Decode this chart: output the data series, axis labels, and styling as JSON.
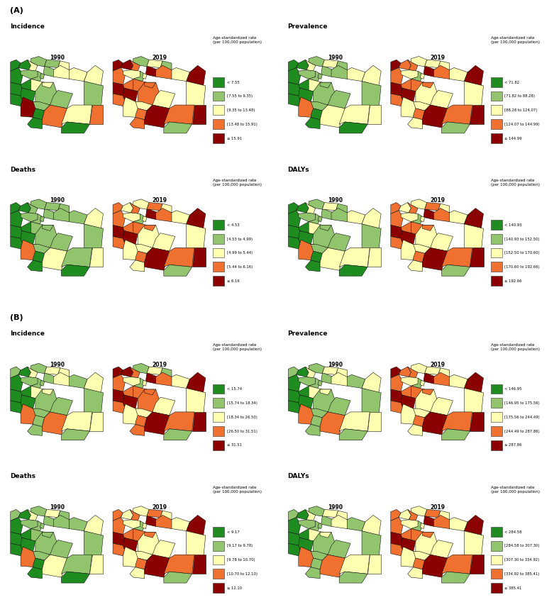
{
  "panel_A_label": "(A)",
  "panel_B_label": "(B)",
  "colors": {
    "dark_green": "#1e8c1e",
    "light_green": "#92c46e",
    "yellow": "#ffffb2",
    "orange": "#f07030",
    "dark_red": "#8b0000",
    "border": "#111111",
    "background": "#ffffff"
  },
  "legends": {
    "A_inc_2019": {
      "title": "Age-standardized rate\n(per 100,000 population)",
      "breaks": [
        "< 7.55",
        "[7.55 to 9.35)",
        "[9.35 to 13.48)",
        "[13.48 to 15.91)",
        "≥ 15.91"
      ]
    },
    "A_prev_2019": {
      "title": "Age-standardized rate\n(per 100,000 population)",
      "breaks": [
        "< 71.82",
        "[71.82 to 88.28)",
        "[88.28 to 124.07)",
        "[124.07 to 144.99)",
        "≥ 144.99"
      ]
    },
    "A_deaths_2019": {
      "title": "Age-standardized rate\n(per 100,000 population)",
      "breaks": [
        "< 4.53",
        "[4.53 to 4.99)",
        "[4.99 to 5.44)",
        "[5.44 to 6.16)",
        "≥ 6.16"
      ]
    },
    "A_daly_2019": {
      "title": "Age-standardized rate\n(per 100,000 population)",
      "breaks": [
        "< 140.93",
        "[140.93 to 152.50)",
        "[152.50 to 170.60)",
        "[170.60 to 192.66)",
        "≥ 192.66"
      ]
    },
    "B_inc_2019": {
      "title": "Age-standardized rate\n(per 100,000 population)",
      "breaks": [
        "< 15.74",
        "[15.74 to 18.34)",
        "[18.34 to 26.50)",
        "[26.50 to 31.51)",
        "≥ 31.51"
      ]
    },
    "B_prev_2019": {
      "title": "Age-standardized rate\n(per 100,000 population)",
      "breaks": [
        "< 146.95",
        "[146.95 to 175.56)",
        "[175.56 to 244.49)",
        "[244.49 to 287.86)",
        "≥ 287.86"
      ]
    },
    "B_deaths_2019": {
      "title": "Age-standardized rate\n(per 100,000 population)",
      "breaks": [
        "< 9.17",
        "[9.17 to 9.78)",
        "[9.78 to 10.70)",
        "[10.70 to 12.10)",
        "≥ 12.10"
      ]
    },
    "B_daly_2019": {
      "title": "Age-standardized rate\n(per 100,000 population)",
      "breaks": [
        "< 284.58",
        "[284.58 to 307.30)",
        "[307.30 to 334.92)",
        "[334.92 to 385.41)",
        "≥ 385.41"
      ]
    }
  },
  "color_palette": [
    "#1e8c1e",
    "#92c46e",
    "#ffffb2",
    "#f07030",
    "#8b0000"
  ],
  "figure_width": 7.84,
  "figure_height": 8.54,
  "dpi": 100
}
